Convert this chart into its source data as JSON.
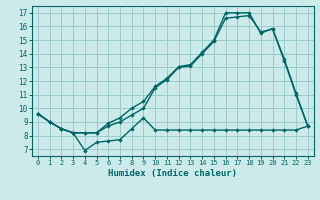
{
  "xlabel": "Humidex (Indice chaleur)",
  "bg_color": "#cceaea",
  "grid_color": "#99cccc",
  "line_color": "#006666",
  "xlim": [
    -0.5,
    23.5
  ],
  "ylim": [
    6.5,
    17.5
  ],
  "xticks": [
    0,
    1,
    2,
    3,
    4,
    5,
    6,
    7,
    8,
    9,
    10,
    11,
    12,
    13,
    14,
    15,
    16,
    17,
    18,
    19,
    20,
    21,
    22,
    23
  ],
  "yticks": [
    7,
    8,
    9,
    10,
    11,
    12,
    13,
    14,
    15,
    16,
    17
  ],
  "line1_x": [
    0,
    1,
    2,
    3,
    4,
    5,
    6,
    7,
    8,
    9,
    10,
    11,
    12,
    13,
    14,
    15,
    16,
    17,
    18,
    19,
    20,
    21,
    22,
    23
  ],
  "line1_y": [
    9.6,
    9.0,
    8.5,
    8.2,
    6.9,
    7.5,
    7.6,
    7.7,
    8.5,
    9.3,
    8.4,
    8.4,
    8.4,
    8.4,
    8.4,
    8.4,
    8.4,
    8.4,
    8.4,
    8.4,
    8.4,
    8.4,
    8.4,
    8.7
  ],
  "line2_x": [
    0,
    1,
    2,
    3,
    4,
    5,
    6,
    7,
    8,
    9,
    10,
    11,
    12,
    13,
    14,
    15,
    16,
    17,
    18,
    19,
    20,
    21,
    22,
    23
  ],
  "line2_y": [
    9.6,
    9.0,
    8.5,
    8.2,
    8.2,
    8.2,
    8.7,
    9.0,
    9.5,
    10.0,
    11.5,
    12.1,
    13.0,
    13.1,
    14.0,
    14.9,
    16.6,
    16.7,
    16.8,
    15.6,
    15.8,
    13.5,
    11.0,
    8.7
  ],
  "line3_x": [
    0,
    1,
    2,
    3,
    4,
    5,
    6,
    7,
    8,
    9,
    10,
    11,
    12,
    13,
    14,
    15,
    16,
    17,
    18,
    19,
    20,
    21,
    22,
    23
  ],
  "line3_y": [
    9.6,
    9.0,
    8.5,
    8.2,
    8.2,
    8.2,
    8.9,
    9.3,
    10.0,
    10.5,
    11.6,
    12.2,
    13.05,
    13.2,
    14.1,
    15.0,
    17.0,
    17.0,
    17.0,
    15.5,
    15.85,
    13.6,
    11.1,
    8.7
  ]
}
